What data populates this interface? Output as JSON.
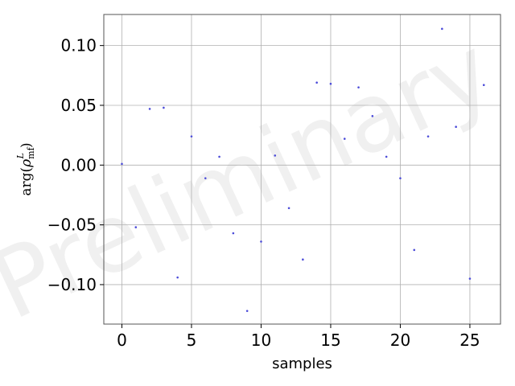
{
  "chart_data": {
    "type": "scatter",
    "title": "",
    "xlabel": "samples",
    "ylabel_parts": {
      "func": "arg",
      "symbol": "ρ",
      "sub": "mf",
      "sup": "L"
    },
    "watermark": "Preliminary",
    "xlim": [
      -1.3,
      27.2
    ],
    "ylim": [
      -0.133,
      0.126
    ],
    "xticks": [
      0,
      5,
      10,
      15,
      20,
      25
    ],
    "xtick_labels": [
      "0",
      "5",
      "10",
      "15",
      "20",
      "25"
    ],
    "yticks": [
      -0.1,
      -0.05,
      0.0,
      0.05,
      0.1
    ],
    "ytick_labels": [
      "−0.10",
      "−0.05",
      "0.00",
      "0.05",
      "0.10"
    ],
    "grid": true,
    "point_color": "#4c4cd9",
    "x": [
      0,
      1,
      2,
      3,
      4,
      5,
      6,
      7,
      8,
      9,
      10,
      11,
      12,
      13,
      14,
      15,
      16,
      17,
      18,
      19,
      20,
      21,
      22,
      23,
      24,
      25,
      26
    ],
    "y": [
      0.001,
      -0.052,
      0.047,
      0.048,
      -0.094,
      0.024,
      -0.011,
      0.007,
      -0.057,
      -0.122,
      -0.064,
      0.008,
      -0.036,
      -0.079,
      0.069,
      0.068,
      0.022,
      0.065,
      0.041,
      0.007,
      -0.011,
      -0.071,
      0.024,
      0.114,
      0.032,
      -0.095,
      0.067
    ]
  }
}
